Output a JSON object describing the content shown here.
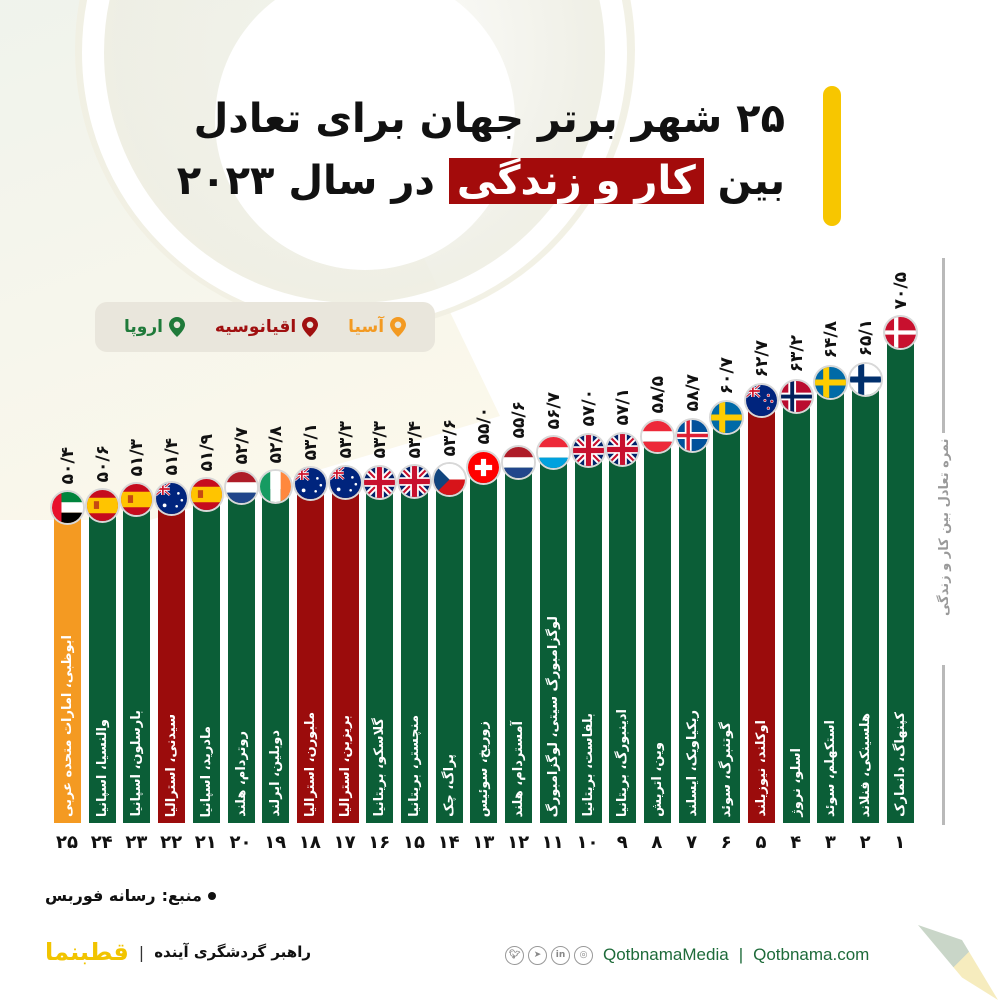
{
  "title": {
    "line1": "۲۵ شهر برتر جهان برای تعادل",
    "line2_before": "بین",
    "line2_highlight": "کار و زندگی",
    "line2_after": "در سال ۲۰۲۳"
  },
  "legend": [
    {
      "label": "اروپا",
      "color": "#1f7a3a",
      "icon": "map-pin-icon"
    },
    {
      "label": "اقیانوسیه",
      "color": "#a01010",
      "icon": "map-pin-icon"
    },
    {
      "label": "آسیا",
      "color": "#f39a22",
      "icon": "map-pin-icon"
    }
  ],
  "colors": {
    "europe": "#0b5e37",
    "oceania": "#9b0c0c",
    "asia": "#f49a22",
    "accent": "#f7c600",
    "title_highlight": "#a30b0b"
  },
  "y_axis_label": "نمره تعادل بین کار و زندگی",
  "bars": [
    {
      "rank": "۲۵",
      "value": "۵۰/۴",
      "city": "ابوظبی، امارات متحده عربی",
      "region": "asia",
      "flag": "uae"
    },
    {
      "rank": "۲۴",
      "value": "۵۰/۶",
      "city": "والنسیا، اسپانیا",
      "region": "europe",
      "flag": "spain"
    },
    {
      "rank": "۲۳",
      "value": "۵۱/۳",
      "city": "بارسلون، اسپانیا",
      "region": "europe",
      "flag": "spain"
    },
    {
      "rank": "۲۲",
      "value": "۵۱/۴",
      "city": "سیدنی، استرالیا",
      "region": "oceania",
      "flag": "australia"
    },
    {
      "rank": "۲۱",
      "value": "۵۱/۹",
      "city": "مادرید، اسپانیا",
      "region": "europe",
      "flag": "spain"
    },
    {
      "rank": "۲۰",
      "value": "۵۲/۷",
      "city": "روتردام، هلند",
      "region": "europe",
      "flag": "netherlands"
    },
    {
      "rank": "۱۹",
      "value": "۵۲/۸",
      "city": "دوبلین، ایرلند",
      "region": "europe",
      "flag": "ireland"
    },
    {
      "rank": "۱۸",
      "value": "۵۳/۱",
      "city": "ملبورن، استرالیا",
      "region": "oceania",
      "flag": "australia"
    },
    {
      "rank": "۱۷",
      "value": "۵۳/۳",
      "city": "بریزبن، استرالیا",
      "region": "oceania",
      "flag": "australia"
    },
    {
      "rank": "۱۶",
      "value": "۵۳/۳",
      "city": "گلاسکو، بریتانیا",
      "region": "europe",
      "flag": "uk"
    },
    {
      "rank": "۱۵",
      "value": "۵۳/۴",
      "city": "منچستر، بریتانیا",
      "region": "europe",
      "flag": "uk"
    },
    {
      "rank": "۱۴",
      "value": "۵۳/۶",
      "city": "پراگ، چک",
      "region": "europe",
      "flag": "czech"
    },
    {
      "rank": "۱۳",
      "value": "۵۵/۰",
      "city": "زوریخ، سوئیس",
      "region": "europe",
      "flag": "switzerland"
    },
    {
      "rank": "۱۲",
      "value": "۵۵/۶",
      "city": "آمستردام، هلند",
      "region": "europe",
      "flag": "netherlands"
    },
    {
      "rank": "۱۱",
      "value": "۵۶/۷",
      "city": "لوگزامبورگ سیتی، لوگزامبورگ",
      "region": "europe",
      "flag": "luxembourg"
    },
    {
      "rank": "۱۰",
      "value": "۵۷/۰",
      "city": "بلفاست، بریتانیا",
      "region": "europe",
      "flag": "uk"
    },
    {
      "rank": "۹",
      "value": "۵۷/۱",
      "city": "ادینبورگ، بریتانیا",
      "region": "europe",
      "flag": "uk"
    },
    {
      "rank": "۸",
      "value": "۵۸/۵",
      "city": "وین، اتریش",
      "region": "europe",
      "flag": "austria"
    },
    {
      "rank": "۷",
      "value": "۵۸/۷",
      "city": "ریکیاویک، ایسلند",
      "region": "europe",
      "flag": "iceland"
    },
    {
      "rank": "۶",
      "value": "۶۰/۷",
      "city": "گوتنبرگ، سوئد",
      "region": "europe",
      "flag": "sweden"
    },
    {
      "rank": "۵",
      "value": "۶۲/۷",
      "city": "اوکلند، نیوزیلند",
      "region": "oceania",
      "flag": "newzealand"
    },
    {
      "rank": "۴",
      "value": "۶۳/۲",
      "city": "اسلو، نروژ",
      "region": "europe",
      "flag": "norway"
    },
    {
      "rank": "۳",
      "value": "۶۴/۸",
      "city": "استکهلم، سوئد",
      "region": "europe",
      "flag": "sweden"
    },
    {
      "rank": "۲",
      "value": "۶۵/۱",
      "city": "هلسینکی، فنلاند",
      "region": "europe",
      "flag": "finland"
    },
    {
      "rank": "۱",
      "value": "۷۰/۵",
      "city": "کپنهاگ، دانمارک",
      "region": "europe",
      "flag": "denmark"
    }
  ],
  "chart_data": {
    "type": "bar",
    "title": "۲۵ شهر برتر جهان برای تعادل بین کار و زندگی در سال ۲۰۲۳",
    "xlabel": "",
    "ylabel": "نمره تعادل بین کار و زندگی",
    "categories": [
      "Abu Dhabi, UAE",
      "Valencia, Spain",
      "Barcelona, Spain",
      "Sydney, Australia",
      "Madrid, Spain",
      "Rotterdam, Netherlands",
      "Dublin, Ireland",
      "Melbourne, Australia",
      "Brisbane, Australia",
      "Glasgow, UK",
      "Manchester, UK",
      "Prague, Czechia",
      "Zurich, Switzerland",
      "Amsterdam, Netherlands",
      "Luxembourg City, Luxembourg",
      "Belfast, UK",
      "Edinburgh, UK",
      "Vienna, Austria",
      "Reykjavik, Iceland",
      "Gothenburg, Sweden",
      "Auckland, New Zealand",
      "Oslo, Norway",
      "Stockholm, Sweden",
      "Helsinki, Finland",
      "Copenhagen, Denmark"
    ],
    "ranks": [
      25,
      24,
      23,
      22,
      21,
      20,
      19,
      18,
      17,
      16,
      15,
      14,
      13,
      12,
      11,
      10,
      9,
      8,
      7,
      6,
      5,
      4,
      3,
      2,
      1
    ],
    "values": [
      50.4,
      50.6,
      51.3,
      51.4,
      51.9,
      52.7,
      52.8,
      53.1,
      53.3,
      53.3,
      53.4,
      53.6,
      55.0,
      55.6,
      56.7,
      57.0,
      57.1,
      58.5,
      58.7,
      60.7,
      62.7,
      63.2,
      64.8,
      65.1,
      70.5
    ],
    "regions": [
      "Asia",
      "Europe",
      "Europe",
      "Oceania",
      "Europe",
      "Europe",
      "Europe",
      "Oceania",
      "Oceania",
      "Europe",
      "Europe",
      "Europe",
      "Europe",
      "Europe",
      "Europe",
      "Europe",
      "Europe",
      "Europe",
      "Europe",
      "Europe",
      "Oceania",
      "Europe",
      "Europe",
      "Europe",
      "Europe"
    ],
    "legend": [
      "اروپا",
      "اقیانوسیه",
      "آسیا"
    ],
    "legend_position": "top-left",
    "grid": false
  },
  "footer": {
    "source_label": "منبع:",
    "source_value": "رسانه فوربس",
    "brand_logo_part1": "قطب",
    "brand_logo_part2": "نما",
    "brand_separator": "|",
    "brand_slogan": "راهبر گردشگری آینده",
    "social_handle": "QotbnamaMedia",
    "social_separator": "|",
    "website": "Qotbnama.com",
    "social_icons": [
      "twitter-icon",
      "telegram-icon",
      "linkedin-icon",
      "instagram-icon"
    ]
  }
}
